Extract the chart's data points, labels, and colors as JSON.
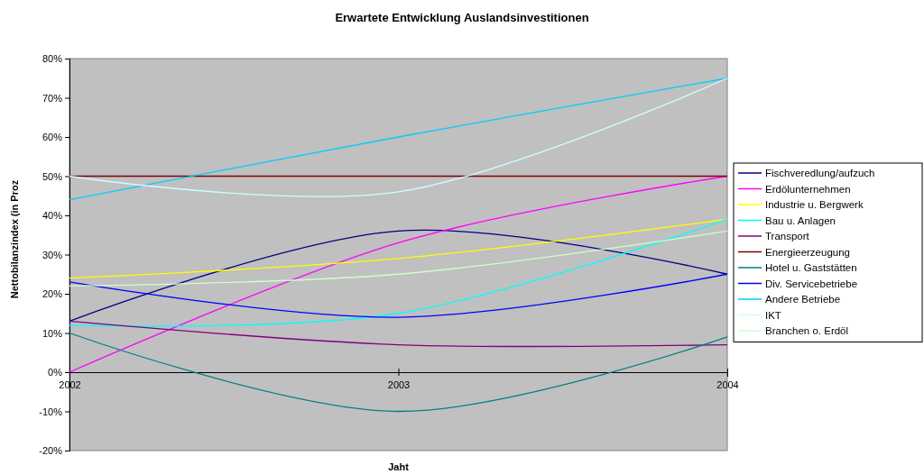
{
  "chart_data": {
    "type": "line",
    "title": "Erwartete Entwicklung Auslandsinvestitionen",
    "xlabel": "Jaht",
    "ylabel": "Nettobilanzindex (in Proz",
    "x": [
      2002,
      2003,
      2004
    ],
    "xlim": [
      2002,
      2004
    ],
    "xticks": [
      2002,
      2003,
      2004
    ],
    "ylim": [
      -20,
      80
    ],
    "yticks": [
      {
        "value": -20,
        "label": "-20%"
      },
      {
        "value": -10,
        "label": "-10%"
      },
      {
        "value": 0,
        "label": "0%"
      },
      {
        "value": 10,
        "label": "10%"
      },
      {
        "value": 20,
        "label": "20%"
      },
      {
        "value": 30,
        "label": "30%"
      },
      {
        "value": 40,
        "label": "40%"
      },
      {
        "value": 50,
        "label": "50%"
      },
      {
        "value": 60,
        "label": "60%"
      },
      {
        "value": 70,
        "label": "70%"
      },
      {
        "value": 80,
        "label": "80%"
      }
    ],
    "grid": false,
    "legend": "right",
    "marker": "none",
    "line_style": "solid",
    "series": [
      {
        "name": "Fischveredlung/aufzuch",
        "color": "#000080",
        "values": [
          13,
          36,
          25
        ]
      },
      {
        "name": "Erdölunternehmen",
        "color": "#ff00ff",
        "values": [
          0,
          33,
          50
        ]
      },
      {
        "name": "Industrie u. Bergwerk",
        "color": "#ffff00",
        "values": [
          24,
          29,
          39
        ]
      },
      {
        "name": "Bau u. Anlagen",
        "color": "#00ffff",
        "values": [
          12,
          15,
          39
        ]
      },
      {
        "name": "Transport",
        "color": "#800080",
        "values": [
          13,
          7,
          7
        ]
      },
      {
        "name": "Energieerzeugung",
        "color": "#800000",
        "values": [
          50,
          50,
          50
        ]
      },
      {
        "name": "Hotel u. Gaststätten",
        "color": "#008080",
        "values": [
          10,
          -10,
          9
        ]
      },
      {
        "name": "Div. Servicebetriebe",
        "color": "#0000ff",
        "values": [
          23,
          14,
          25
        ]
      },
      {
        "name": "Andere Betriebe",
        "color": "#00ccff",
        "values": [
          44,
          60,
          75
        ]
      },
      {
        "name": "IKT",
        "color": "#ccffff",
        "values": [
          50,
          46,
          75
        ]
      },
      {
        "name": "Branchen o. Erdöl",
        "color": "#ccffcc",
        "values": [
          22,
          25,
          36
        ]
      }
    ]
  }
}
